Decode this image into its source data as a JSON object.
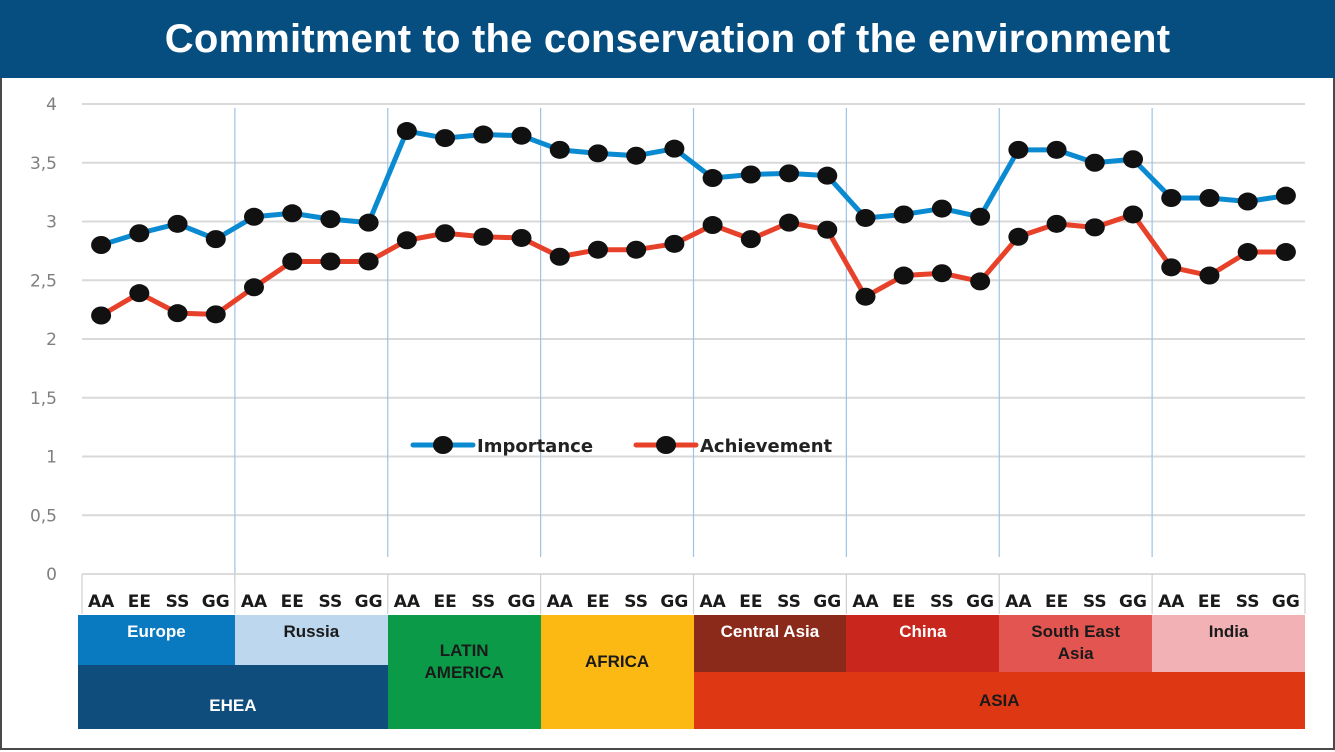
{
  "title": "Commitment to the conservation of the environment",
  "chart_data": {
    "type": "line",
    "title": "Commitment to the conservation of the environment",
    "xlabel": "",
    "ylabel": "",
    "ylim": [
      0,
      4
    ],
    "yticks": [
      "0",
      "0,5",
      "1",
      "1,5",
      "2",
      "2,5",
      "3",
      "3,5",
      "4"
    ],
    "ytick_values": [
      0,
      0.5,
      1,
      1.5,
      2,
      2.5,
      3,
      3.5,
      4
    ],
    "grid": "horizontal",
    "legend_position": "center",
    "categories": [
      "AA",
      "EE",
      "SS",
      "GG",
      "AA",
      "EE",
      "SS",
      "GG",
      "AA",
      "EE",
      "SS",
      "GG",
      "AA",
      "EE",
      "SS",
      "GG",
      "AA",
      "EE",
      "SS",
      "GG",
      "AA",
      "EE",
      "SS",
      "GG",
      "AA",
      "EE",
      "SS",
      "GG",
      "AA",
      "EE",
      "SS",
      "GG"
    ],
    "groups": [
      {
        "name": "Europe",
        "super": "EHEA"
      },
      {
        "name": "Russia",
        "super": "EHEA"
      },
      {
        "name": "LATIN AMERICA",
        "super": "LATIN AMERICA"
      },
      {
        "name": "AFRICA",
        "super": "AFRICA"
      },
      {
        "name": "Central Asia",
        "super": "ASIA"
      },
      {
        "name": "China",
        "super": "ASIA"
      },
      {
        "name": "South East Asia",
        "super": "ASIA"
      },
      {
        "name": "India",
        "super": "ASIA"
      }
    ],
    "series": [
      {
        "name": "Importance",
        "color": "#0a8ad0",
        "values": [
          2.8,
          2.9,
          2.98,
          2.85,
          3.04,
          3.07,
          3.02,
          2.99,
          3.77,
          3.71,
          3.74,
          3.73,
          3.61,
          3.58,
          3.56,
          3.62,
          3.37,
          3.4,
          3.41,
          3.39,
          3.03,
          3.06,
          3.11,
          3.04,
          3.61,
          3.61,
          3.5,
          3.53,
          3.2,
          3.2,
          3.17,
          3.22
        ]
      },
      {
        "name": "Achievement",
        "color": "#e8412a",
        "values": [
          2.2,
          2.39,
          2.22,
          2.21,
          2.44,
          2.66,
          2.66,
          2.66,
          2.84,
          2.9,
          2.87,
          2.86,
          2.7,
          2.76,
          2.76,
          2.81,
          2.97,
          2.85,
          2.99,
          2.93,
          2.36,
          2.54,
          2.56,
          2.49,
          2.87,
          2.98,
          2.95,
          3.06,
          2.61,
          2.54,
          2.74,
          2.74
        ]
      }
    ]
  },
  "region_bands": {
    "upper": [
      {
        "label": "Europe",
        "color": "#0a7ac0",
        "text_color": "#ffffff"
      },
      {
        "label": "Russia",
        "color": "#bcd7ee",
        "text_color": "#1a1a1a"
      },
      {
        "label": "LATIN AMERICA",
        "color": "#0b9a48",
        "text_color": "#1a1a1a"
      },
      {
        "label": "AFRICA",
        "color": "#fdb913",
        "text_color": "#1a1a1a"
      },
      {
        "label": "Central Asia",
        "color": "#8b2a1b",
        "text_color": "#ffffff"
      },
      {
        "label": "China",
        "color": "#c9271e",
        "text_color": "#ffffff"
      },
      {
        "label": "South East Asia",
        "color": "#e35551",
        "text_color": "#1a1a1a"
      },
      {
        "label": "India",
        "color": "#f2b2b5",
        "text_color": "#1a1a1a"
      }
    ],
    "lower": [
      {
        "label": "EHEA",
        "color": "#0f4d7d",
        "text_color": "#ffffff"
      },
      {
        "label": "ASIA",
        "color": "#de3714",
        "text_color": "#1a1a1a"
      }
    ]
  },
  "colors": {
    "title_bar": "#064e80",
    "gridline": "#d9d9d9",
    "separator": "#9dc3e6",
    "marker": "#111111"
  }
}
